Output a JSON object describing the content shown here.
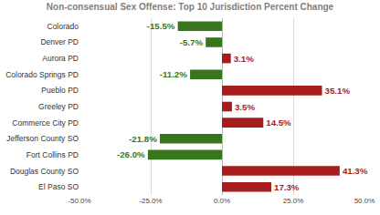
{
  "chart_data": {
    "type": "bar",
    "title": "Non-consensual Sex Offense: Top 10 Jurisdiction Percent Change",
    "orientation": "horizontal",
    "categories": [
      "Colorado",
      "Denver PD",
      "Aurora PD",
      "Colorado Springs PD",
      "Pueblo PD",
      "Greeley PD",
      "Commerce City PD",
      "Jefferson County SO",
      "Fort Collins PD",
      "Douglas County SO",
      "El Paso SO"
    ],
    "values": [
      -15.5,
      -5.7,
      3.1,
      -11.2,
      35.1,
      3.5,
      14.5,
      -21.8,
      -26.0,
      41.3,
      17.3
    ],
    "value_labels": [
      "-15.5%",
      "-5.7%",
      "3.1%",
      "-11.2%",
      "35.1%",
      "3.5%",
      "14.5%",
      "-21.8%",
      "-26.0%",
      "41.3%",
      "17.3%"
    ],
    "colors": [
      "#38761d",
      "#38761d",
      "#a61c1c",
      "#38761d",
      "#a61c1c",
      "#a61c1c",
      "#a61c1c",
      "#38761d",
      "#38761d",
      "#a61c1c",
      "#a61c1c"
    ],
    "data_labels": true,
    "xlim": [
      -50,
      50
    ],
    "xticks": [
      {
        "value": -50,
        "label": "-50.0%"
      },
      {
        "value": -25,
        "label": "-25.0%"
      },
      {
        "value": 0,
        "label": "0.0%"
      },
      {
        "value": 25,
        "label": "25.0%"
      },
      {
        "value": 50,
        "label": "50.0%"
      }
    ],
    "grid": true
  }
}
